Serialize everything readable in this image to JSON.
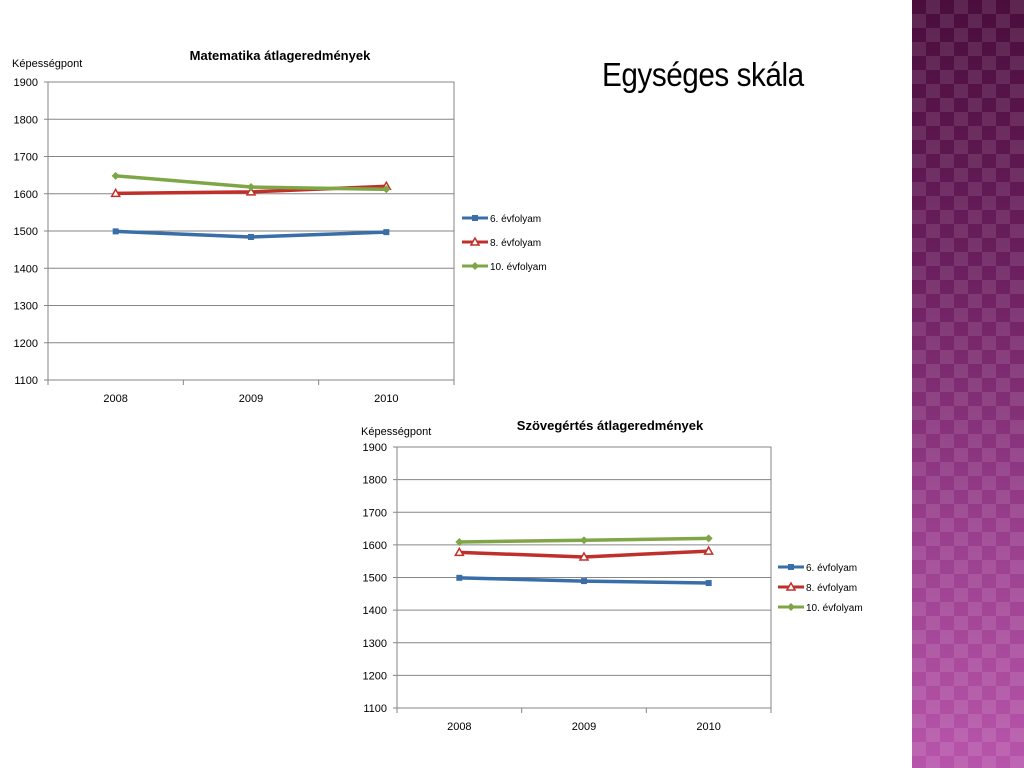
{
  "slide": {
    "title": "Egységes skála",
    "side_band_color": "#7a2a6f"
  },
  "chart_data": [
    {
      "type": "line",
      "title": "Matematika átlageredmények",
      "ylabel": "Képességpont",
      "xlabel": "",
      "categories": [
        "2008",
        "2009",
        "2010"
      ],
      "ylim": [
        1100,
        1900
      ],
      "yticks": [
        1100,
        1200,
        1300,
        1400,
        1500,
        1600,
        1700,
        1800,
        1900
      ],
      "grid": true,
      "legend": "right",
      "series": [
        {
          "name": "6. évfolyam",
          "values": [
            1499,
            1484,
            1497
          ],
          "color": "#3a6ea8",
          "marker": "square"
        },
        {
          "name": "8. évfolyam",
          "values": [
            1601,
            1605,
            1620
          ],
          "color": "#c0302b",
          "marker": "triangle"
        },
        {
          "name": "10. évfolyam",
          "values": [
            1648,
            1618,
            1612
          ],
          "color": "#7fa646",
          "marker": "diamond"
        }
      ]
    },
    {
      "type": "line",
      "title": "Szövegértés átlageredmények",
      "ylabel": "Képességpont",
      "xlabel": "",
      "categories": [
        "2008",
        "2009",
        "2010"
      ],
      "ylim": [
        1100,
        1900
      ],
      "yticks": [
        1100,
        1200,
        1300,
        1400,
        1500,
        1600,
        1700,
        1800,
        1900
      ],
      "grid": true,
      "legend": "right",
      "series": [
        {
          "name": "6. évfolyam",
          "values": [
            1499,
            1489,
            1483
          ],
          "color": "#3a6ea8",
          "marker": "square"
        },
        {
          "name": "8. évfolyam",
          "values": [
            1577,
            1563,
            1581
          ],
          "color": "#c0302b",
          "marker": "triangle"
        },
        {
          "name": "10. évfolyam",
          "values": [
            1609,
            1614,
            1620
          ],
          "color": "#7fa646",
          "marker": "diamond"
        }
      ]
    }
  ]
}
